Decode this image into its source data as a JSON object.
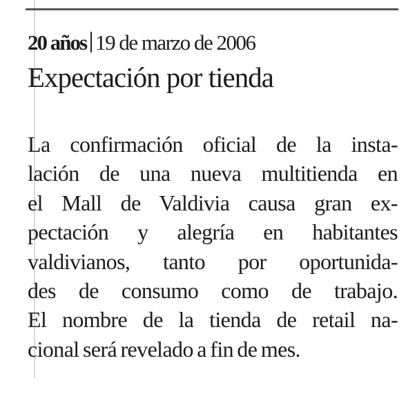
{
  "kicker": {
    "section": "20 años",
    "date": "19 de marzo de 2006"
  },
  "headline": "Expectación por tienda",
  "body_lines": [
    "La confirmación oficial de la insta-",
    "lación de una nueva multitienda en",
    "el Mall de Valdivia causa gran ex-",
    "pectación y alegría en habitantes",
    "valdivianos, tanto por oportunida-",
    "des de consumo como de trabajo.",
    "El nombre de la tienda de retail na-",
    "cional será revelado a fin de mes."
  ]
}
